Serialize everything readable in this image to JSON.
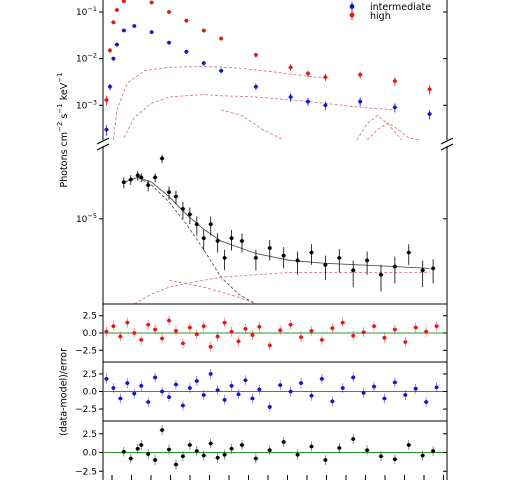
{
  "chart_data": [
    {
      "type": "scatter",
      "panel": "upper spectrum",
      "yscale": "log",
      "ylabel": "Photons cm$^{-2}$ s$^{-1}$ keV$^{-1}$",
      "y_ticks": [
        {
          "value": 0.1,
          "base": "10",
          "exp": "−1"
        },
        {
          "value": 0.01,
          "base": "10",
          "exp": "−2"
        },
        {
          "value": 0.001,
          "base": "10",
          "exp": "−3"
        }
      ],
      "ylim": [
        0.00018,
        0.22
      ],
      "xlim": [
        0.6,
        10.5
      ],
      "legend": {
        "placement": "top-right",
        "entries": [
          "intermediate",
          "high"
        ]
      },
      "series": [
        {
          "name": "high",
          "color": "#e01818",
          "x": [
            0.7,
            0.8,
            0.9,
            1.0,
            1.2,
            1.5,
            2.0,
            2.5,
            3.0,
            3.5,
            4.0,
            5.0,
            6.0,
            6.5,
            7.0,
            8.0,
            9.0,
            10.0
          ],
          "y": [
            0.0013,
            0.015,
            0.06,
            0.11,
            0.17,
            0.2,
            0.16,
            0.1,
            0.065,
            0.04,
            0.027,
            0.012,
            0.0065,
            0.0048,
            0.004,
            0.0045,
            0.0033,
            0.0022
          ],
          "y_err": [
            0.0003,
            0.002,
            0.006,
            0.01,
            0.012,
            0.014,
            0.012,
            0.008,
            0.005,
            0.004,
            0.003,
            0.0015,
            0.001,
            0.0008,
            0.0007,
            0.0008,
            0.0007,
            0.0005
          ]
        },
        {
          "name": "intermediate",
          "color": "#1414c8",
          "x": [
            0.7,
            0.8,
            0.9,
            1.0,
            1.2,
            1.5,
            2.0,
            2.5,
            3.0,
            3.5,
            4.0,
            5.0,
            6.0,
            6.5,
            7.0,
            8.0,
            9.0,
            10.0
          ],
          "y": [
            0.0003,
            0.0025,
            0.01,
            0.02,
            0.04,
            0.05,
            0.037,
            0.022,
            0.014,
            0.008,
            0.0055,
            0.0025,
            0.0015,
            0.0012,
            0.001,
            0.0012,
            0.0009,
            0.00065
          ],
          "y_err": [
            8e-05,
            0.0004,
            0.001,
            0.002,
            0.003,
            0.004,
            0.003,
            0.002,
            0.0015,
            0.001,
            0.0007,
            0.0004,
            0.0003,
            0.00025,
            0.0002,
            0.00025,
            0.0002,
            0.00015
          ]
        }
      ],
      "model_curves": [
        {
          "color": "#d08080",
          "x": [
            0.9,
            1.0,
            1.3,
            1.8,
            2.5,
            3.5,
            4.5,
            5.5,
            6.5,
            7.0
          ],
          "y": [
            0.00018,
            0.0008,
            0.003,
            0.0055,
            0.0065,
            0.0068,
            0.0063,
            0.0052,
            0.0042,
            0.0038
          ]
        },
        {
          "color": "#d08080",
          "x": [
            1.2,
            1.5,
            2.0,
            2.5,
            3.0,
            3.5,
            4.0,
            5.0,
            6.0,
            7.0,
            8.0,
            9.0
          ],
          "y": [
            0.0002,
            0.00055,
            0.0011,
            0.0015,
            0.0016,
            0.0017,
            0.0016,
            0.0015,
            0.0013,
            0.0011,
            0.0009,
            0.0008
          ]
        },
        {
          "color": "#d08080",
          "x": [
            7.9,
            8.2,
            8.5,
            8.8,
            9.2
          ],
          "y": [
            0.00018,
            0.0004,
            0.0006,
            0.0004,
            0.00018
          ]
        },
        {
          "color": "#d08080",
          "x": [
            8.2,
            8.5,
            8.8,
            9.1,
            9.4,
            9.7
          ],
          "y": [
            0.00018,
            0.0003,
            0.00042,
            0.0003,
            0.0002,
            0.00018
          ]
        },
        {
          "color": "#d08080",
          "x": [
            4.0,
            4.6,
            5.2,
            5.8
          ],
          "y": [
            0.0008,
            0.0006,
            0.0003,
            0.00018
          ]
        }
      ]
    },
    {
      "type": "scatter",
      "panel": "lower spectrum",
      "yscale": "log",
      "y_ticks": [
        {
          "value": 1e-05,
          "base": "10",
          "exp": "−5"
        }
      ],
      "ylim": [
        3e-07,
        0.0002
      ],
      "xlim": [
        0.6,
        10.5
      ],
      "series": [
        {
          "name": "",
          "color": "#000000",
          "x": [
            1.2,
            1.4,
            1.6,
            1.7,
            1.9,
            2.1,
            2.3,
            2.5,
            2.7,
            2.9,
            3.1,
            3.3,
            3.5,
            3.7,
            3.9,
            4.1,
            4.3,
            4.6,
            5.0,
            5.4,
            5.8,
            6.2,
            6.6,
            7.0,
            7.4,
            7.8,
            8.2,
            8.6,
            9.0,
            9.4,
            9.8,
            10.1
          ],
          "y": [
            4.5e-05,
            5e-05,
            6e-05,
            5.5e-05,
            4e-05,
            5.5e-05,
            0.00012,
            3e-05,
            2.5e-05,
            1.5e-05,
            1.2e-05,
            8e-06,
            4.5e-06,
            8e-06,
            4e-06,
            2e-06,
            4.5e-06,
            4e-06,
            2e-06,
            3e-06,
            2.2e-06,
            1.8e-06,
            2.5e-06,
            1.5e-06,
            2e-06,
            1.2e-06,
            1.8e-06,
            1e-06,
            1.4e-06,
            2.5e-06,
            1.2e-06,
            1.3e-06
          ],
          "y_err": [
            1e-05,
            1e-05,
            1.2e-05,
            1e-05,
            9e-06,
            1e-05,
            2e-05,
            8e-06,
            7e-06,
            5e-06,
            4e-06,
            3e-06,
            1.8e-06,
            3e-06,
            1.5e-06,
            8e-07,
            1.8e-06,
            1.5e-06,
            8e-07,
            1.2e-06,
            9e-07,
            8e-07,
            1e-06,
            7e-07,
            9e-07,
            6e-07,
            8e-07,
            5e-07,
            7e-07,
            1e-06,
            6e-07,
            6e-07
          ]
        }
      ],
      "model_curves": [
        {
          "color": "#555555",
          "x": [
            1.2,
            1.6,
            2.0,
            2.5,
            3.0,
            3.5,
            4.0,
            5.0,
            6.0,
            7.0,
            8.0,
            9.0,
            10.0
          ],
          "y": [
            4.5e-05,
            5.5e-05,
            4.5e-05,
            2.5e-05,
            1.2e-05,
            6.5e-06,
            4e-06,
            2.4e-06,
            1.8e-06,
            1.6e-06,
            1.5e-06,
            1.4e-06,
            1.3e-06
          ]
        },
        {
          "color": "#555555",
          "x": [
            1.2,
            1.6,
            2.0,
            2.5,
            3.0,
            3.5,
            4.0,
            4.5,
            5.0
          ],
          "y": [
            4.5e-05,
            5.5e-05,
            4e-05,
            2e-05,
            8e-06,
            2.8e-06,
            9e-07,
            4.5e-07,
            3e-07
          ]
        },
        {
          "color": "#d08080",
          "x": [
            1.5,
            2.0,
            2.5,
            3.0,
            3.5,
            4.0,
            5.0,
            6.0,
            7.0,
            8.0,
            9.0,
            10.0
          ],
          "y": [
            3e-07,
            4.5e-07,
            6e-07,
            7e-07,
            8e-07,
            9e-07,
            1e-06,
            1.1e-06,
            1.1e-06,
            1.1e-06,
            1.1e-06,
            1.1e-06
          ]
        },
        {
          "color": "#d08080",
          "x": [
            2.5,
            3.5,
            4.5,
            5.0
          ],
          "y": [
            8e-07,
            6e-07,
            4e-07,
            3e-07
          ]
        }
      ]
    },
    {
      "type": "scatter",
      "panel": "residuals high",
      "ylabel": "(data-model)/error",
      "y_ticks": [
        "2.5",
        "0.0",
        "−2.5"
      ],
      "ylim": [
        -4.2,
        4.2
      ],
      "xlim": [
        0.6,
        10.5
      ],
      "zero_line_color": "#2a9a2a",
      "series": [
        {
          "name": "high",
          "color": "#e01818",
          "x": [
            0.7,
            0.9,
            1.1,
            1.3,
            1.5,
            1.7,
            1.9,
            2.1,
            2.3,
            2.5,
            2.7,
            2.9,
            3.1,
            3.3,
            3.5,
            3.7,
            3.9,
            4.1,
            4.3,
            4.5,
            4.7,
            4.9,
            5.1,
            5.4,
            5.7,
            6.0,
            6.3,
            6.6,
            6.9,
            7.2,
            7.5,
            7.8,
            8.1,
            8.4,
            8.7,
            9.0,
            9.3,
            9.6,
            9.9,
            10.2
          ],
          "y": [
            0.2,
            1.0,
            -0.5,
            1.5,
            0.0,
            -1.0,
            1.2,
            0.5,
            -0.8,
            1.8,
            0.3,
            -1.5,
            0.8,
            -0.2,
            1.0,
            -2.0,
            -0.5,
            1.5,
            0.2,
            -1.2,
            0.6,
            -0.3,
            0.9,
            -1.8,
            0.4,
            1.2,
            -0.6,
            0.3,
            -1.0,
            0.7,
            1.5,
            -0.4,
            0.1,
            1.0,
            -0.7,
            0.5,
            -1.3,
            0.8,
            0.2,
            1.0
          ]
        }
      ]
    },
    {
      "type": "scatter",
      "panel": "residuals intermediate",
      "y_ticks": [
        "2.5",
        "0.0",
        "−2.5"
      ],
      "ylim": [
        -4.2,
        4.2
      ],
      "xlim": [
        0.6,
        10.5
      ],
      "zero_line_color": "#2a9a2a",
      "series": [
        {
          "name": "intermediate",
          "color": "#1414c8",
          "x": [
            0.7,
            0.9,
            1.1,
            1.3,
            1.5,
            1.7,
            1.9,
            2.1,
            2.3,
            2.5,
            2.7,
            2.9,
            3.1,
            3.3,
            3.5,
            3.7,
            3.9,
            4.1,
            4.3,
            4.5,
            4.7,
            4.9,
            5.1,
            5.4,
            5.7,
            6.0,
            6.3,
            6.6,
            6.9,
            7.2,
            7.5,
            7.8,
            8.1,
            8.4,
            8.7,
            9.0,
            9.3,
            9.6,
            9.9,
            10.2
          ],
          "y": [
            1.8,
            0.5,
            -1.0,
            1.2,
            -0.3,
            0.8,
            -1.5,
            2.0,
            0.0,
            -0.8,
            1.0,
            -2.0,
            0.5,
            1.5,
            -0.5,
            2.5,
            0.2,
            -1.2,
            0.8,
            -0.4,
            1.6,
            -1.0,
            0.3,
            -2.2,
            0.9,
            0.0,
            1.2,
            -0.6,
            1.8,
            -1.4,
            0.5,
            2.0,
            -0.2,
            0.7,
            -1.0,
            1.3,
            -0.5,
            0.4,
            -1.5,
            0.6
          ]
        }
      ]
    },
    {
      "type": "scatter",
      "panel": "residuals lower spectrum",
      "y_ticks": [
        "2.5",
        "0.0",
        "−2.5"
      ],
      "ylim": [
        -4.2,
        4.2
      ],
      "xlim": [
        0.6,
        10.5
      ],
      "zero_line_color": "#2a9a2a",
      "series": [
        {
          "name": "",
          "color": "#000000",
          "x": [
            1.2,
            1.4,
            1.6,
            1.7,
            1.9,
            2.1,
            2.3,
            2.5,
            2.7,
            2.9,
            3.1,
            3.3,
            3.5,
            3.7,
            3.9,
            4.1,
            4.3,
            4.6,
            5.0,
            5.4,
            5.8,
            6.2,
            6.6,
            7.0,
            7.4,
            7.8,
            8.2,
            8.6,
            9.0,
            9.4,
            9.8,
            10.1
          ],
          "y": [
            0.1,
            -0.8,
            0.5,
            1.0,
            -0.2,
            -1.0,
            3.0,
            0.4,
            -1.6,
            -0.5,
            1.0,
            0.2,
            -0.4,
            1.2,
            -0.7,
            -0.3,
            0.5,
            1.0,
            -0.8,
            0.3,
            1.4,
            -0.3,
            0.8,
            -1.0,
            0.6,
            1.8,
            0.3,
            -0.5,
            -0.9,
            1.0,
            -0.4,
            0.2
          ]
        }
      ]
    }
  ]
}
